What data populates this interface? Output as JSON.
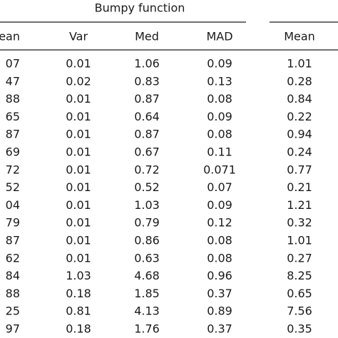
{
  "table": {
    "group_title": "Bumpy function",
    "columns": [
      "ean",
      "Var",
      "Med",
      "MAD",
      "Mean"
    ],
    "rows": [
      [
        "07",
        "0.01",
        "1.06",
        "0.09",
        "1.01"
      ],
      [
        "47",
        "0.02",
        "0.83",
        "0.13",
        "0.28"
      ],
      [
        "88",
        "0.01",
        "0.87",
        "0.08",
        "0.84"
      ],
      [
        "65",
        "0.01",
        "0.64",
        "0.09",
        "0.22"
      ],
      [
        "87",
        "0.01",
        "0.87",
        "0.08",
        "0.94"
      ],
      [
        "69",
        "0.01",
        "0.67",
        "0.11",
        "0.24"
      ],
      [
        "72",
        "0.01",
        "0.72",
        "0.071",
        "0.77"
      ],
      [
        "52",
        "0.01",
        "0.52",
        "0.07",
        "0.21"
      ],
      [
        "04",
        "0.01",
        "1.03",
        "0.09",
        "1.21"
      ],
      [
        "79",
        "0.01",
        "0.79",
        "0.12",
        "0.32"
      ],
      [
        "87",
        "0.01",
        "0.86",
        "0.08",
        "1.01"
      ],
      [
        "62",
        "0.01",
        "0.63",
        "0.08",
        "0.27"
      ],
      [
        "84",
        "1.03",
        "4.68",
        "0.96",
        "8.25"
      ],
      [
        "88",
        "0.18",
        "1.85",
        "0.37",
        "0.65"
      ],
      [
        "25",
        "0.81",
        "4.13",
        "0.89",
        "7.56"
      ],
      [
        "97",
        "0.18",
        "1.76",
        "0.37",
        "0.35"
      ]
    ]
  }
}
